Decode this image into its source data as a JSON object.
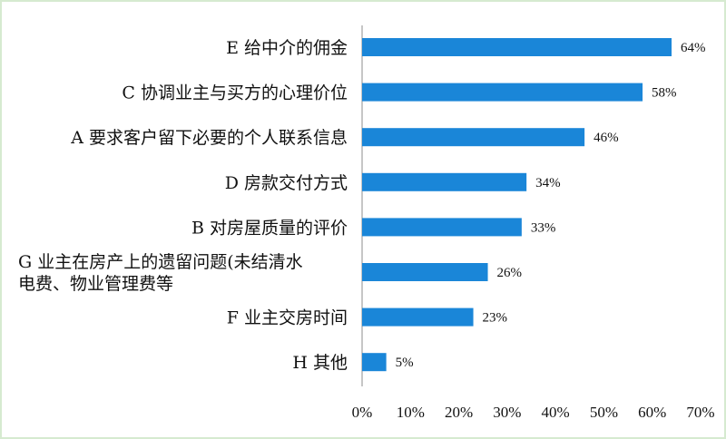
{
  "chart_data": {
    "type": "bar",
    "orientation": "horizontal",
    "categories": [
      [
        "E 给中介的佣金"
      ],
      [
        "C 协调业主与买方的心理价位"
      ],
      [
        "A 要求客户留下必要的个人联系信息"
      ],
      [
        "D 房款交付方式"
      ],
      [
        "B 对房屋质量的评价"
      ],
      [
        "G 业主在房产上的遗留问题(未结清水",
        "电费、物业管理费等"
      ],
      [
        "F 业主交房时间"
      ],
      [
        "H 其他"
      ]
    ],
    "values": [
      64,
      58,
      46,
      34,
      33,
      26,
      23,
      5
    ],
    "value_labels": [
      "64%",
      "58%",
      "46%",
      "34%",
      "33%",
      "26%",
      "23%",
      "5%"
    ],
    "x_ticks": [
      "0%",
      "10%",
      "20%",
      "30%",
      "40%",
      "50%",
      "60%",
      "70%"
    ],
    "xlim": [
      0,
      70
    ],
    "bar_color": "#1a86d8",
    "grid": false,
    "legend": "none"
  }
}
